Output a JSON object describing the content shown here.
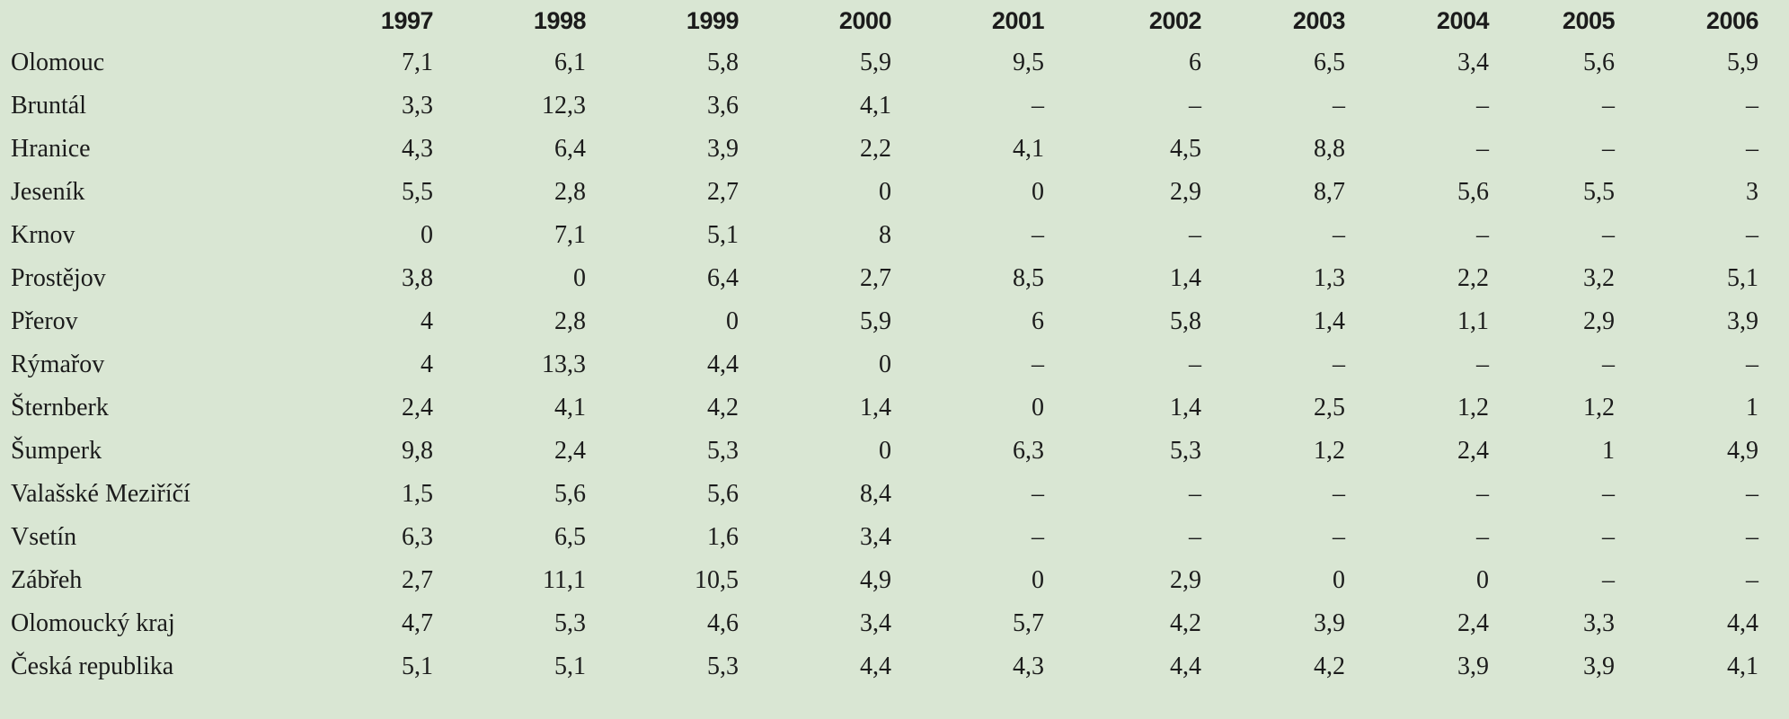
{
  "table": {
    "years": [
      "1997",
      "1998",
      "1999",
      "2000",
      "2001",
      "2002",
      "2003",
      "2004",
      "2005",
      "2006"
    ],
    "rows": [
      {
        "name": "Olomouc",
        "values": [
          "7,1",
          "6,1",
          "5,8",
          "5,9",
          "9,5",
          "6",
          "6,5",
          "3,4",
          "5,6",
          "5,9"
        ]
      },
      {
        "name": "Bruntál",
        "values": [
          "3,3",
          "12,3",
          "3,6",
          "4,1",
          "–",
          "–",
          "–",
          "–",
          "–",
          "–"
        ]
      },
      {
        "name": "Hranice",
        "values": [
          "4,3",
          "6,4",
          "3,9",
          "2,2",
          "4,1",
          "4,5",
          "8,8",
          "–",
          "–",
          "–"
        ]
      },
      {
        "name": "Jeseník",
        "values": [
          "5,5",
          "2,8",
          "2,7",
          "0",
          "0",
          "2,9",
          "8,7",
          "5,6",
          "5,5",
          "3"
        ]
      },
      {
        "name": "Krnov",
        "values": [
          "0",
          "7,1",
          "5,1",
          "8",
          "–",
          "–",
          "–",
          "–",
          "–",
          "–"
        ]
      },
      {
        "name": "Prostějov",
        "values": [
          "3,8",
          "0",
          "6,4",
          "2,7",
          "8,5",
          "1,4",
          "1,3",
          "2,2",
          "3,2",
          "5,1"
        ]
      },
      {
        "name": "Přerov",
        "values": [
          "4",
          "2,8",
          "0",
          "5,9",
          "6",
          "5,8",
          "1,4",
          "1,1",
          "2,9",
          "3,9"
        ]
      },
      {
        "name": "Rýmařov",
        "values": [
          "4",
          "13,3",
          "4,4",
          "0",
          "–",
          "–",
          "–",
          "–",
          "–",
          "–"
        ]
      },
      {
        "name": "Šternberk",
        "values": [
          "2,4",
          "4,1",
          "4,2",
          "1,4",
          "0",
          "1,4",
          "2,5",
          "1,2",
          "1,2",
          "1"
        ]
      },
      {
        "name": "Šumperk",
        "values": [
          "9,8",
          "2,4",
          "5,3",
          "0",
          "6,3",
          "5,3",
          "1,2",
          "2,4",
          "1",
          "4,9"
        ]
      },
      {
        "name": "Valašské Meziříčí",
        "values": [
          "1,5",
          "5,6",
          "5,6",
          "8,4",
          "–",
          "–",
          "–",
          "–",
          "–",
          "–"
        ]
      },
      {
        "name": "Vsetín",
        "values": [
          "6,3",
          "6,5",
          "1,6",
          "3,4",
          "–",
          "–",
          "–",
          "–",
          "–",
          "–"
        ]
      },
      {
        "name": "Zábřeh",
        "values": [
          "2,7",
          "11,1",
          "10,5",
          "4,9",
          "0",
          "2,9",
          "0",
          "0",
          "–",
          "–"
        ]
      },
      {
        "name": "Olomoucký kraj",
        "values": [
          "4,7",
          "5,3",
          "4,6",
          "3,4",
          "5,7",
          "4,2",
          "3,9",
          "2,4",
          "3,3",
          "4,4"
        ]
      },
      {
        "name": "Česká republika",
        "values": [
          "5,1",
          "5,1",
          "5,3",
          "4,4",
          "4,3",
          "4,4",
          "4,2",
          "3,9",
          "3,9",
          "4,1"
        ]
      }
    ]
  }
}
